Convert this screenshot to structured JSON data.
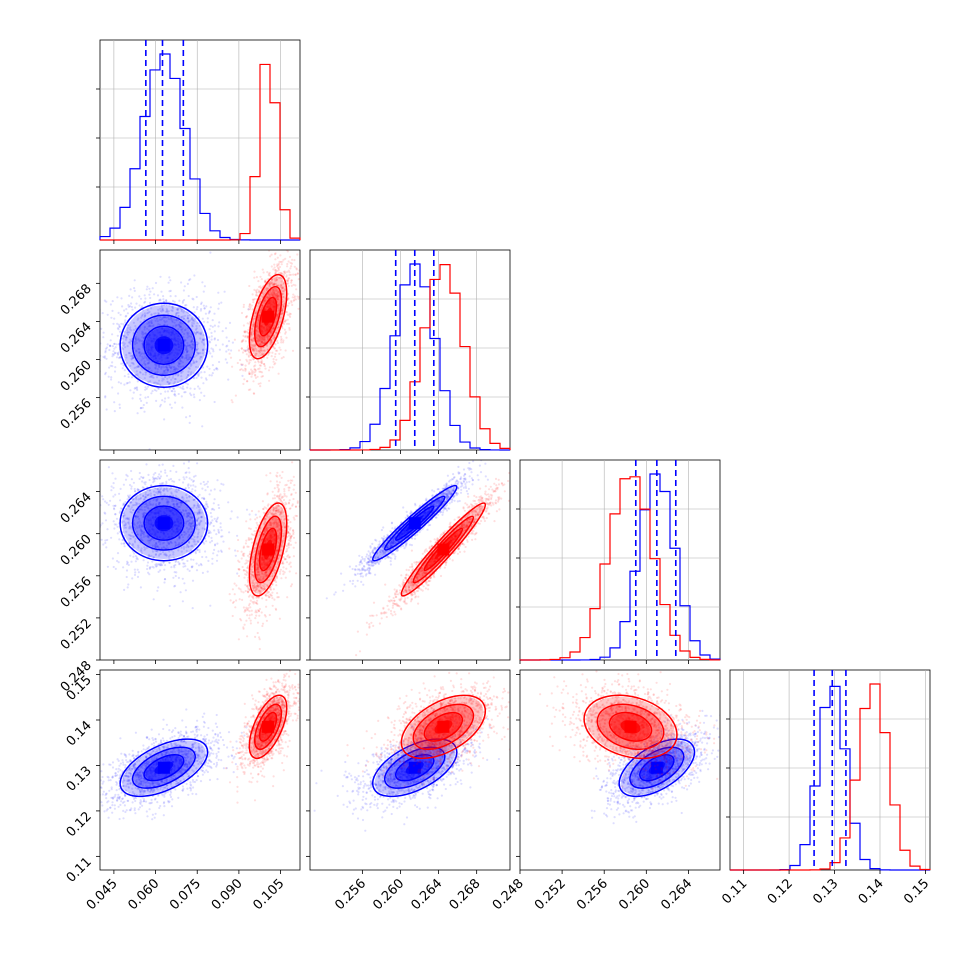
{
  "chart_data": {
    "type": "corner",
    "colors": {
      "blue": "#0000ff",
      "red": "#ff0000",
      "grid": "#b0b0b0"
    },
    "params": [
      {
        "range": [
          0.04,
          0.112
        ],
        "ticks": [
          "0.045",
          "0.060",
          "0.075",
          "0.090",
          "0.105"
        ],
        "tick_values": [
          0.045,
          0.06,
          0.075,
          0.09,
          0.105
        ]
      },
      {
        "range": [
          0.2505,
          0.2715
        ],
        "ticks": [
          "0.256",
          "0.260",
          "0.264",
          "0.268"
        ],
        "tick_values": [
          0.256,
          0.26,
          0.264,
          0.268
        ]
      },
      {
        "range": [
          0.248,
          0.267
        ],
        "ticks": [
          "0.248",
          "0.252",
          "0.256",
          "0.260",
          "0.264"
        ],
        "tick_values": [
          0.248,
          0.252,
          0.256,
          0.26,
          0.264
        ]
      },
      {
        "range": [
          0.107,
          0.151
        ],
        "ticks": [
          "0.11",
          "0.12",
          "0.13",
          "0.14",
          "0.15"
        ],
        "tick_values": [
          0.11,
          0.12,
          0.13,
          0.14,
          0.15
        ]
      }
    ],
    "quantiles_blue": [
      [
        0.0565,
        0.0625,
        0.07
      ],
      [
        0.2595,
        0.2615,
        0.2635
      ],
      [
        0.259,
        0.261,
        0.2628
      ],
      [
        0.1255,
        0.1295,
        0.1325
      ]
    ],
    "series": [
      {
        "name": "",
        "color": "#0000ff",
        "mean": [
          0.063,
          0.2615,
          0.261,
          0.1295
        ],
        "sd": [
          0.0075,
          0.0021,
          0.0017,
          0.003
        ],
        "corr": [
          [
            1,
            0.0,
            0.0,
            0.55
          ],
          [
            0.0,
            1,
            0.96,
            0.55
          ],
          [
            0.0,
            0.96,
            1,
            0.55
          ],
          [
            0.55,
            0.55,
            0.55,
            1
          ]
        ]
      },
      {
        "name": "",
        "color": "#ff0000",
        "mean": [
          0.1005,
          0.2645,
          0.2585,
          0.1385
        ],
        "sd": [
          0.0032,
          0.0021,
          0.0021,
          0.0033
        ],
        "corr": [
          [
            1,
            0.55,
            0.55,
            0.6
          ],
          [
            0.55,
            1,
            0.96,
            0.5
          ],
          [
            0.55,
            0.96,
            1,
            -0.25
          ],
          [
            0.6,
            0.5,
            -0.25,
            1
          ]
        ]
      }
    ]
  }
}
